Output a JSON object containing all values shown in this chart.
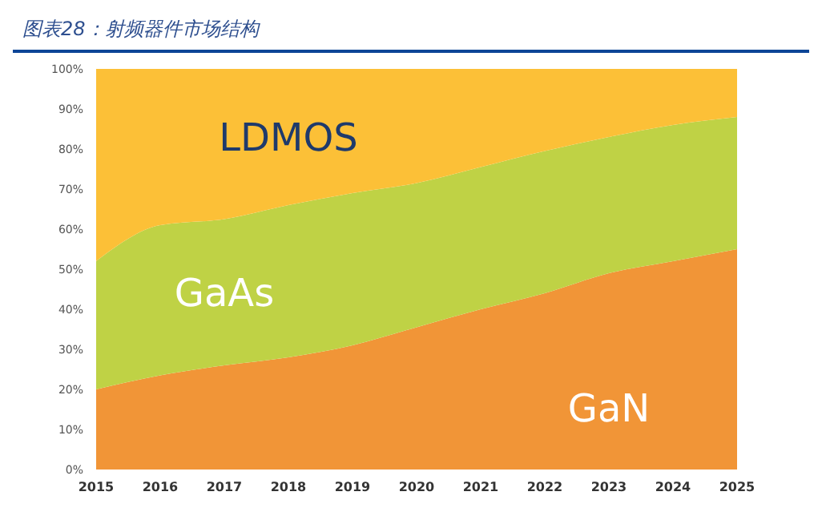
{
  "chart_data": {
    "type": "area",
    "title": "图表28：射频器件市场结构",
    "stacked": true,
    "categories": [
      "2015",
      "2016",
      "2017",
      "2018",
      "2019",
      "2020",
      "2021",
      "2022",
      "2023",
      "2024",
      "2025"
    ],
    "series": [
      {
        "name": "GaN",
        "color": "#f19537",
        "values": [
          20,
          23.5,
          26,
          28,
          31,
          35.5,
          40,
          44,
          49,
          52,
          55
        ]
      },
      {
        "name": "GaAs",
        "color": "#bfd245",
        "values": [
          32,
          37.5,
          36.5,
          38,
          38,
          36,
          35.5,
          35.5,
          34,
          34,
          33
        ]
      },
      {
        "name": "LDMOS",
        "color": "#fcc037",
        "values": [
          48,
          39,
          37.5,
          34,
          31,
          28.5,
          24.5,
          20.5,
          17,
          14,
          12
        ]
      }
    ],
    "ylim": [
      0,
      100
    ],
    "yticks": [
      {
        "value": 0,
        "label": "0%"
      },
      {
        "value": 10,
        "label": "10%"
      },
      {
        "value": 20,
        "label": "20%"
      },
      {
        "value": 30,
        "label": "30%"
      },
      {
        "value": 40,
        "label": "40%"
      },
      {
        "value": 50,
        "label": "50%"
      },
      {
        "value": 60,
        "label": "60%"
      },
      {
        "value": 70,
        "label": "70%"
      },
      {
        "value": 80,
        "label": "80%"
      },
      {
        "value": 90,
        "label": "90%"
      },
      {
        "value": 100,
        "label": "100%"
      }
    ],
    "grid": false,
    "legend": false
  }
}
